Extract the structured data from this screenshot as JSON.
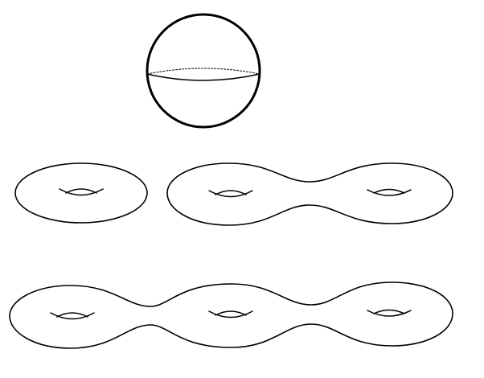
{
  "figure": {
    "shapes": [
      {
        "name": "sphere",
        "genus": 0,
        "handles": 0
      },
      {
        "name": "torus",
        "genus": 1,
        "handles": 1
      },
      {
        "name": "double-torus",
        "genus": 2,
        "handles": 2
      },
      {
        "name": "triple-torus",
        "genus": 3,
        "handles": 3
      }
    ],
    "colors": {
      "stroke": "#000000",
      "background": "#ffffff"
    }
  }
}
